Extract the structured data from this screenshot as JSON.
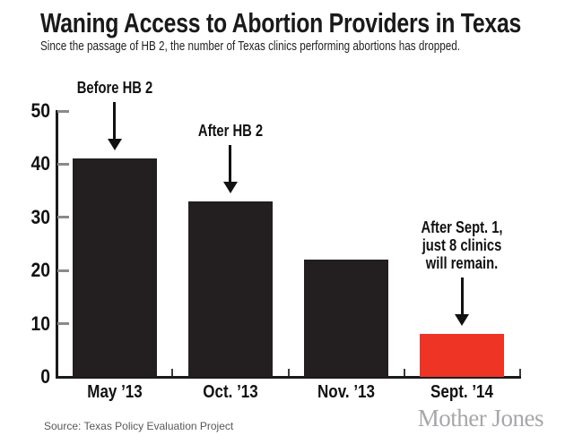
{
  "header": {
    "title": "Waning Access to Abortion Providers in Texas",
    "subtitle": "Since the passage of HB 2, the number of Texas clinics performing abortions has dropped."
  },
  "chart_data": {
    "type": "bar",
    "title": "Waning Access to Abortion Providers in Texas",
    "subtitle": "Since the passage of HB 2, the number of Texas clinics performing abortions has dropped.",
    "categories": [
      "May ’13",
      "Oct. ’13",
      "Nov. ’13",
      "Sept. ’14"
    ],
    "values": [
      41,
      33,
      22,
      8
    ],
    "bar_colors": [
      "#231f20",
      "#231f20",
      "#231f20",
      "#ee3424"
    ],
    "xlabel": "",
    "ylabel": "",
    "ylim": [
      0,
      50
    ],
    "y_ticks": [
      0,
      10,
      20,
      30,
      40,
      50
    ],
    "grid": false,
    "legend": false,
    "annotations": [
      {
        "lines": [
          "Before HB 2"
        ],
        "target_category": 0
      },
      {
        "lines": [
          "After HB 2"
        ],
        "target_category": 1
      },
      {
        "lines": [
          "After Sept. 1,",
          "just 8 clinics",
          "will remain."
        ],
        "target_category": 3
      }
    ]
  },
  "footer": {
    "source": "Source: Texas Policy Evaluation Project",
    "logo": "Mother Jones"
  },
  "colors": {
    "bar_black": "#231f20",
    "bar_red": "#ee3424",
    "axis": "#1a1a1a",
    "y_tick": "#8a8a8a",
    "x_tick": "#3c3c3c",
    "source_text": "#58585b",
    "logo_text": "#a7a7ab"
  }
}
